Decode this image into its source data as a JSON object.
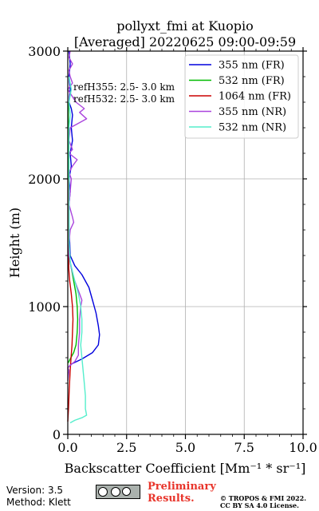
{
  "chart_data": {
    "type": "line",
    "title_line1": "pollyxt_fmi at Kuopio",
    "title_line2": "[Averaged] 20220625 09:00-09:59",
    "xlabel": "Backscatter Coefficient [Mm⁻¹ * sr⁻¹]",
    "ylabel": "Height (m)",
    "xlim": [
      0,
      10
    ],
    "ylim": [
      0,
      3000
    ],
    "xticks": [
      0,
      2.5,
      5,
      7.5,
      10
    ],
    "xtick_labels": [
      "0.0",
      "2.5",
      "5.0",
      "7.5",
      "10.0"
    ],
    "yticks": [
      0,
      1000,
      2000,
      3000
    ],
    "ytick_labels": [
      "0",
      "1000",
      "2000",
      "3000"
    ],
    "grid": true,
    "legend_position": "top-right",
    "annotation_line1": "refH355:  2.5- 3.0 km",
    "annotation_line2": "refH532:  2.5- 3.0 km",
    "series": [
      {
        "name": "355 nm (FR)",
        "color": "#0000dd",
        "points": [
          [
            0.05,
            3000
          ],
          [
            0.1,
            2900
          ],
          [
            0.05,
            2800
          ],
          [
            0.1,
            2700
          ],
          [
            0.05,
            2600
          ],
          [
            0.15,
            2550
          ],
          [
            0.2,
            2500
          ],
          [
            0.15,
            2400
          ],
          [
            0.2,
            2300
          ],
          [
            0.1,
            2200
          ],
          [
            0.15,
            2100
          ],
          [
            0.05,
            2000
          ],
          [
            0.1,
            1900
          ],
          [
            0.05,
            1800
          ],
          [
            0.05,
            1600
          ],
          [
            0.08,
            1500
          ],
          [
            0.1,
            1400
          ],
          [
            0.3,
            1320
          ],
          [
            0.6,
            1250
          ],
          [
            0.9,
            1150
          ],
          [
            1.05,
            1050
          ],
          [
            1.2,
            950
          ],
          [
            1.3,
            850
          ],
          [
            1.35,
            780
          ],
          [
            1.3,
            700
          ],
          [
            1.05,
            640
          ],
          [
            0.6,
            590
          ],
          [
            0.15,
            550
          ],
          [
            0.05,
            530
          ]
        ]
      },
      {
        "name": "532 nm (FR)",
        "color": "#00bb00",
        "points": [
          [
            0.02,
            2600
          ],
          [
            0.03,
            2000
          ],
          [
            0.05,
            1500
          ],
          [
            0.1,
            1350
          ],
          [
            0.25,
            1200
          ],
          [
            0.35,
            1100
          ],
          [
            0.4,
            1000
          ],
          [
            0.42,
            900
          ],
          [
            0.4,
            800
          ],
          [
            0.35,
            700
          ],
          [
            0.25,
            640
          ],
          [
            0.1,
            590
          ],
          [
            0.02,
            560
          ]
        ]
      },
      {
        "name": "1064 nm (FR)",
        "color": "#cc0000",
        "points": [
          [
            0.02,
            2000
          ],
          [
            0.04,
            1300
          ],
          [
            0.08,
            1200
          ],
          [
            0.15,
            1100
          ],
          [
            0.2,
            1000
          ],
          [
            0.22,
            900
          ],
          [
            0.2,
            800
          ],
          [
            0.18,
            700
          ],
          [
            0.14,
            600
          ],
          [
            0.1,
            500
          ],
          [
            0.06,
            350
          ],
          [
            0.03,
            200
          ],
          [
            0.0,
            100
          ]
        ]
      },
      {
        "name": "355 nm (NR)",
        "color": "#aa44dd",
        "points": [
          [
            0.1,
            3000
          ],
          [
            0.05,
            2950
          ],
          [
            0.2,
            2900
          ],
          [
            0.05,
            2850
          ],
          [
            0.1,
            2800
          ],
          [
            0.2,
            2750
          ],
          [
            0.0,
            2700
          ],
          [
            0.35,
            2600
          ],
          [
            0.7,
            2550
          ],
          [
            0.5,
            2520
          ],
          [
            0.8,
            2470
          ],
          [
            0.4,
            2430
          ],
          [
            0.1,
            2400
          ],
          [
            0.05,
            2300
          ],
          [
            0.2,
            2230
          ],
          [
            0.05,
            2200
          ],
          [
            0.4,
            2150
          ],
          [
            0.2,
            2100
          ],
          [
            0.05,
            2050
          ],
          [
            0.15,
            2000
          ],
          [
            0.1,
            1900
          ],
          [
            0.05,
            1800
          ],
          [
            0.2,
            1700
          ],
          [
            0.25,
            1660
          ],
          [
            0.1,
            1600
          ],
          [
            0.05,
            1500
          ],
          [
            0.05,
            1400
          ],
          [
            0.15,
            1300
          ],
          [
            0.3,
            1200
          ],
          [
            0.5,
            1100
          ],
          [
            0.6,
            1050
          ],
          [
            0.55,
            1000
          ],
          [
            0.5,
            900
          ],
          [
            0.5,
            800
          ],
          [
            0.45,
            700
          ],
          [
            0.45,
            620
          ],
          [
            0.3,
            570
          ],
          [
            0.1,
            540
          ],
          [
            0.0,
            520
          ],
          [
            0.05,
            500
          ],
          [
            0.02,
            450
          ],
          [
            0.0,
            420
          ]
        ]
      },
      {
        "name": "532 nm (NR)",
        "color": "#55eecc",
        "points": [
          [
            0.05,
            2800
          ],
          [
            0.15,
            2700
          ],
          [
            0.05,
            2600
          ],
          [
            0.1,
            2500
          ],
          [
            0.05,
            2400
          ],
          [
            0.05,
            2000
          ],
          [
            0.05,
            1500
          ],
          [
            0.1,
            1350
          ],
          [
            0.3,
            1200
          ],
          [
            0.45,
            1100
          ],
          [
            0.55,
            1000
          ],
          [
            0.6,
            900
          ],
          [
            0.6,
            800
          ],
          [
            0.55,
            700
          ],
          [
            0.6,
            600
          ],
          [
            0.65,
            500
          ],
          [
            0.7,
            400
          ],
          [
            0.75,
            300
          ],
          [
            0.75,
            200
          ],
          [
            0.8,
            150
          ],
          [
            0.6,
            130
          ],
          [
            0.3,
            110
          ],
          [
            0.1,
            90
          ]
        ]
      }
    ]
  },
  "footer": {
    "version": "Version: 3.5",
    "method": "Method: Klett",
    "preliminary_line1": "Preliminary",
    "preliminary_line2": "Results.",
    "copyright_line1": "© TROPOS & FMI 2022.",
    "copyright_line2": "CC BY SA 4.0 License.",
    "license_logo_text": "BY SA"
  }
}
